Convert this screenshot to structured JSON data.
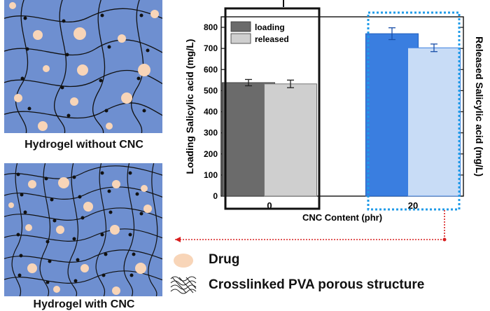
{
  "left_panels": {
    "top_caption": "Hydrogel without CNC",
    "bottom_caption": "Hydrogel with CNC"
  },
  "legend_below": {
    "drug_label": "Drug",
    "pva_label": "Crosslinked PVA porous structure"
  },
  "colors": {
    "panel_bg": "#6e8fd0",
    "drug": "#f8d5b8",
    "loading_0": "#6b6b6b",
    "released_0": "#cfcfcf",
    "loading_20": "#3a7ee0",
    "released_20": "#c8dcf6",
    "highlight_box": "#1f9be8",
    "arrow": "#d92020"
  },
  "chart_data": {
    "type": "bar",
    "title": "",
    "categories": [
      "0",
      "20"
    ],
    "series": [
      {
        "name": "loading",
        "values": [
          538,
          770
        ],
        "errors": [
          15,
          28
        ]
      },
      {
        "name": "released",
        "values": [
          532,
          703
        ],
        "errors": [
          18,
          18
        ]
      }
    ],
    "xlabel": "CNC Content (phr)",
    "ylabel": "Loading Salicylic acid (mg/L)",
    "ylabel_right": "Released Salicylic acid (mg/L)",
    "ylim": [
      0,
      850
    ],
    "yticks": [
      0,
      100,
      200,
      300,
      400,
      500,
      600,
      700,
      800
    ],
    "legend": {
      "position": "top-left",
      "entries": [
        "loading",
        "released"
      ]
    }
  }
}
